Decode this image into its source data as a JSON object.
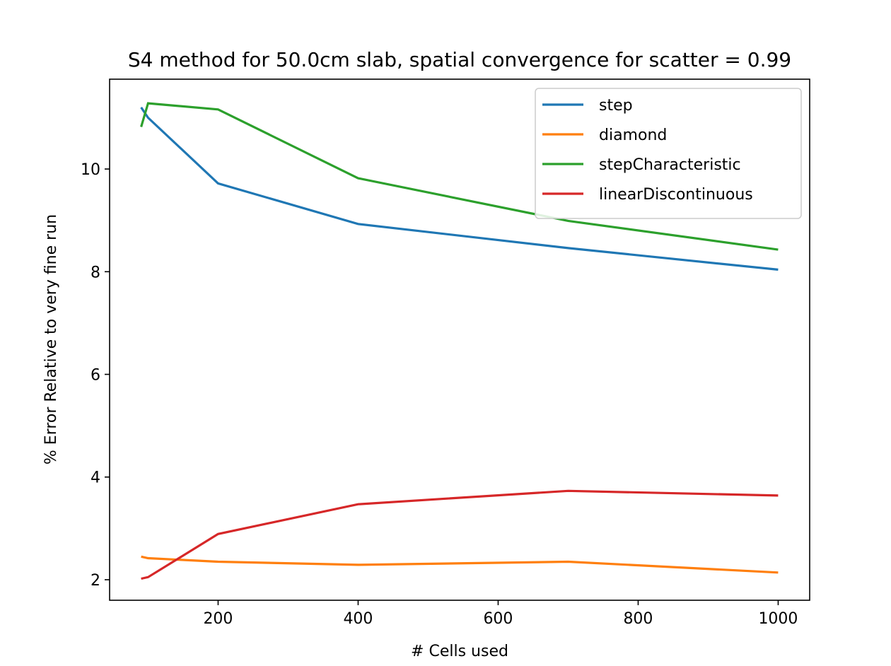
{
  "chart_data": {
    "type": "line",
    "title": "S4 method for 50.0cm slab, spatial convergence for scatter = 0.99",
    "xlabel": "# Cells used",
    "ylabel": "% Error Relative to very fine run",
    "xlim": [
      45,
      1045
    ],
    "ylim": [
      1.6,
      11.75
    ],
    "xticks": [
      200,
      400,
      600,
      800,
      1000
    ],
    "yticks": [
      2,
      4,
      6,
      8,
      10
    ],
    "grid": false,
    "legend_position": "upper right",
    "series": [
      {
        "name": "step",
        "color": "#1f77b4",
        "x": [
          90,
          100,
          200,
          400,
          700,
          1000
        ],
        "y": [
          11.2,
          11.0,
          9.72,
          8.93,
          8.46,
          8.04
        ]
      },
      {
        "name": "diamond",
        "color": "#ff7f0e",
        "x": [
          90,
          100,
          200,
          400,
          700,
          1000
        ],
        "y": [
          2.45,
          2.42,
          2.35,
          2.29,
          2.35,
          2.14
        ]
      },
      {
        "name": "stepCharacteristic",
        "color": "#2ca02c",
        "x": [
          90,
          100,
          200,
          400,
          700,
          1000
        ],
        "y": [
          10.82,
          11.28,
          11.16,
          9.82,
          8.99,
          8.43
        ]
      },
      {
        "name": "linearDiscontinuous",
        "color": "#d62728",
        "x": [
          90,
          100,
          200,
          400,
          700,
          1000
        ],
        "y": [
          2.02,
          2.05,
          2.89,
          3.47,
          3.73,
          3.64
        ]
      }
    ]
  }
}
